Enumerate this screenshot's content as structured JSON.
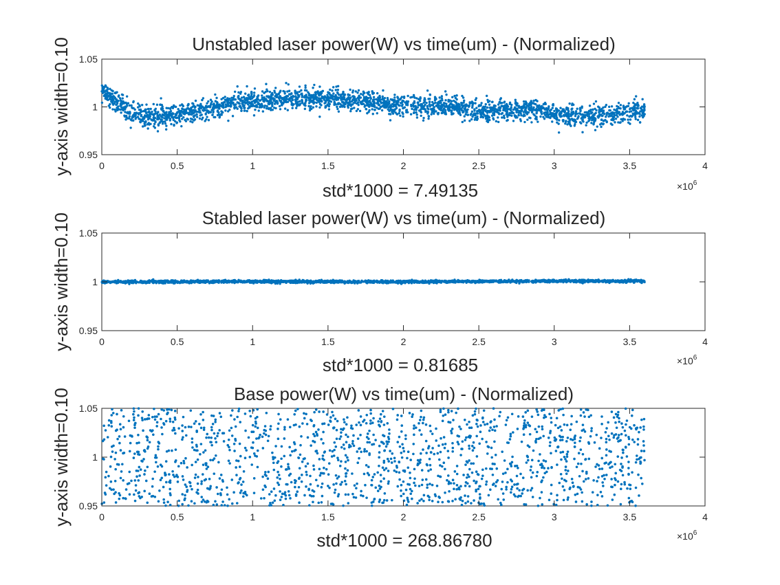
{
  "figure": {
    "background": "#ffffff",
    "point_color": "#0072bd",
    "axis_color": "#262626"
  },
  "chart_data": [
    {
      "type": "scatter",
      "title": "Unstabled laser power(W) vs time(um) - (Normalized)",
      "xlabel": "std*1000 = 7.49135",
      "ylabel": "y-axis width=0.10",
      "xlim": [
        0,
        4000000
      ],
      "ylim": [
        0.95,
        1.05
      ],
      "x_ticks": [
        0,
        500000,
        1000000,
        1500000,
        2000000,
        2500000,
        3000000,
        3500000,
        4000000
      ],
      "x_tick_labels": [
        "0",
        "0.5",
        "1",
        "1.5",
        "2",
        "2.5",
        "3",
        "3.5",
        "4"
      ],
      "y_ticks": [
        0.95,
        1,
        1.05
      ],
      "y_tick_labels": [
        "0.95",
        "1",
        "1.05"
      ],
      "x_exponent_base": "×10",
      "x_exponent_power": "6",
      "grid": false,
      "legend": "none",
      "series": [
        {
          "marker": "dot",
          "x_range": [
            0,
            3600000
          ],
          "noise_std": 0.0055,
          "trend_x": [
            0,
            50000,
            100000,
            200000,
            300000,
            400000,
            500000,
            700000,
            900000,
            1100000,
            1300000,
            1500000,
            1700000,
            1900000,
            2100000,
            2300000,
            2500000,
            2700000,
            2900000,
            3100000,
            3300000,
            3500000,
            3600000
          ],
          "trend_y": [
            1.017,
            1.013,
            1.005,
            0.994,
            0.989,
            0.991,
            0.993,
            0.997,
            1.004,
            1.008,
            1.009,
            1.008,
            1.007,
            1.002,
            1.001,
            1.001,
            0.995,
            0.997,
            0.997,
            0.99,
            0.991,
            0.996,
            0.998
          ]
        }
      ]
    },
    {
      "type": "scatter",
      "title": "Stabled laser power(W) vs time(um) - (Normalized)",
      "xlabel": "std*1000 = 0.81685",
      "ylabel": "y-axis width=0.10",
      "xlim": [
        0,
        4000000
      ],
      "ylim": [
        0.95,
        1.05
      ],
      "x_ticks": [
        0,
        500000,
        1000000,
        1500000,
        2000000,
        2500000,
        3000000,
        3500000,
        4000000
      ],
      "x_tick_labels": [
        "0",
        "0.5",
        "1",
        "1.5",
        "2",
        "2.5",
        "3",
        "3.5",
        "4"
      ],
      "y_ticks": [
        0.95,
        1,
        1.05
      ],
      "y_tick_labels": [
        "0.95",
        "1",
        "1.05"
      ],
      "x_exponent_base": "×10",
      "x_exponent_power": "6",
      "grid": false,
      "legend": "none",
      "series": [
        {
          "marker": "dot",
          "x_range": [
            0,
            3600000
          ],
          "noise_std": 0.0007,
          "trend_x": [
            0,
            1000000,
            2000000,
            3000000,
            3600000
          ],
          "trend_y": [
            1.0,
            1.0003,
            1.0,
            1.0008,
            1.0008
          ]
        }
      ]
    },
    {
      "type": "scatter",
      "title": "Base power(W) vs time(um) - (Normalized)",
      "xlabel": "std*1000 = 268.86780",
      "ylabel": "y-axis width=0.10",
      "xlim": [
        0,
        4000000
      ],
      "ylim": [
        0.95,
        1.05
      ],
      "x_ticks": [
        0,
        500000,
        1000000,
        1500000,
        2000000,
        2500000,
        3000000,
        3500000,
        4000000
      ],
      "x_tick_labels": [
        "0",
        "0.5",
        "1",
        "1.5",
        "2",
        "2.5",
        "3",
        "3.5",
        "4"
      ],
      "y_ticks": [
        0.95,
        1,
        1.05
      ],
      "y_tick_labels": [
        "0.95",
        "1",
        "1.05"
      ],
      "x_exponent_base": "×10",
      "x_exponent_power": "6",
      "grid": false,
      "legend": "none",
      "series": [
        {
          "marker": "dot",
          "x_range": [
            0,
            3600000
          ],
          "distribution": "uniform",
          "y_range": [
            0.95,
            1.05
          ]
        }
      ]
    }
  ]
}
